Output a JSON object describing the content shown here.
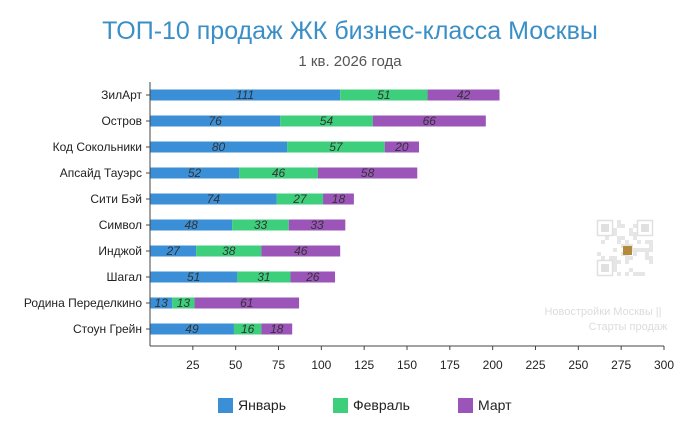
{
  "chart_data": {
    "type": "bar",
    "orientation": "horizontal",
    "stacked": true,
    "title": "ТОП-10 продаж ЖК бизнес-класса Москвы",
    "subtitle": "1 кв. 2026 года",
    "categories": [
      "ЗилАрт",
      "Остров",
      "Код Сокольники",
      "Апсайд Тауэрс",
      "Сити Бэй",
      "Символ",
      "Инджой",
      "Шагал",
      "Родина Переделкино",
      "Стоун Грейн"
    ],
    "series": [
      {
        "name": "Январь",
        "color": "#3a8fd6",
        "values": [
          111,
          76,
          80,
          52,
          74,
          48,
          27,
          51,
          13,
          49
        ]
      },
      {
        "name": "Февраль",
        "color": "#3ecf7c",
        "values": [
          51,
          54,
          57,
          46,
          27,
          33,
          38,
          31,
          13,
          16
        ]
      },
      {
        "name": "Март",
        "color": "#9b55b9",
        "values": [
          42,
          66,
          20,
          58,
          18,
          33,
          46,
          26,
          61,
          18
        ]
      }
    ],
    "xlim": [
      0,
      300
    ],
    "xticks": [
      25,
      50,
      75,
      100,
      125,
      150,
      175,
      200,
      225,
      250,
      275,
      300
    ],
    "grid": false,
    "legend": "bottom"
  },
  "watermark": {
    "line1": "Новостройки Москвы ||",
    "line2": "Старты продаж"
  }
}
